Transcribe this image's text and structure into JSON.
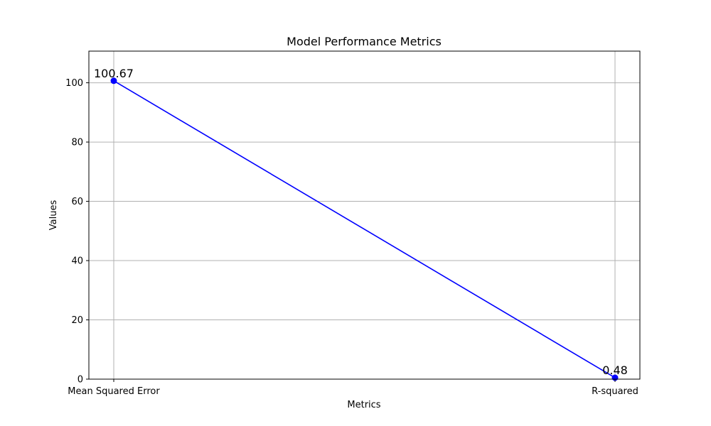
{
  "chart_data": {
    "type": "line",
    "title": "Model Performance Metrics",
    "xlabel": "Metrics",
    "ylabel": "Values",
    "categories": [
      "Mean Squared Error",
      "R-squared"
    ],
    "series": [
      {
        "values": [
          100.67,
          0.48
        ],
        "color": "#0000ff",
        "marker": "circle"
      }
    ],
    "data_labels": [
      "100.67",
      "0.48"
    ],
    "ylim": [
      0,
      110.68
    ],
    "yticks": [
      0,
      20,
      40,
      60,
      80,
      100
    ],
    "grid": true
  }
}
